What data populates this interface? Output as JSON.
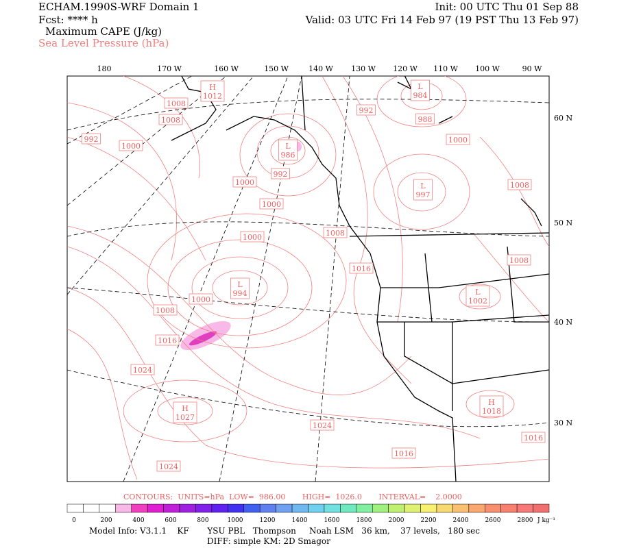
{
  "header": {
    "left": [
      "ECHAM.1990S-WRF Domain 1",
      "Fcst: **** h",
      "Maximum CAPE (J/kg)",
      "Sea Level Pressure (hPa)"
    ],
    "right": [
      "Init: 00 UTC Thu 01 Sep 88",
      "Valid: 03 UTC Fri 14 Feb 97 (19 PST Thu 13 Feb 97)"
    ]
  },
  "map": {
    "longitude_labels": [
      "180",
      "170 W",
      "160 W",
      "150 W",
      "140 W",
      "130 W",
      "120 W",
      "110 W",
      "100 W",
      "90 W"
    ],
    "latitude_labels": [
      "60 N",
      "50 N",
      "40 N",
      "30 N"
    ],
    "pressure_labels": [
      {
        "center": "H",
        "value": "1012"
      },
      {
        "value": "1008"
      },
      {
        "value": "1008"
      },
      {
        "value": "992"
      },
      {
        "value": "1000"
      },
      {
        "center": "L",
        "value": "986"
      },
      {
        "value": "992"
      },
      {
        "value": "1000"
      },
      {
        "value": "1000"
      },
      {
        "value": "1000"
      },
      {
        "value": "1008"
      },
      {
        "value": "1016"
      },
      {
        "center": "L",
        "value": "994"
      },
      {
        "value": "1000"
      },
      {
        "value": "1008"
      },
      {
        "value": "1016"
      },
      {
        "value": "1024"
      },
      {
        "center": "H",
        "value": "1027"
      },
      {
        "value": "1024"
      },
      {
        "value": "1016"
      },
      {
        "value": "1024"
      },
      {
        "value": "992"
      },
      {
        "center": "L",
        "value": "984"
      },
      {
        "value": "988"
      },
      {
        "value": "1000"
      },
      {
        "center": "L",
        "value": "997"
      },
      {
        "value": "1008"
      },
      {
        "value": "1008"
      },
      {
        "center": "L",
        "value": "1002"
      },
      {
        "center": "H",
        "value": "1018"
      },
      {
        "value": "1016"
      }
    ]
  },
  "contour_info": "CONTOURS:  UNITS=hPa  LOW=  986.00       HIGH=  1026.0       INTERVAL=    2.0000",
  "colorbar": {
    "labels": [
      "0",
      "200",
      "400",
      "600",
      "800",
      "1000",
      "1200",
      "1400",
      "1600",
      "1800",
      "2000",
      "2200",
      "2400",
      "2600",
      "2800"
    ],
    "units": "J kg⁻¹"
  },
  "footer": [
    "Model Info: V3.1.1    KF       YSU PBL   Thompson     Noah LSM   36 km,    37 levels,   180 sec",
    "DIFF: simple KM: 2D Smagor"
  ]
}
